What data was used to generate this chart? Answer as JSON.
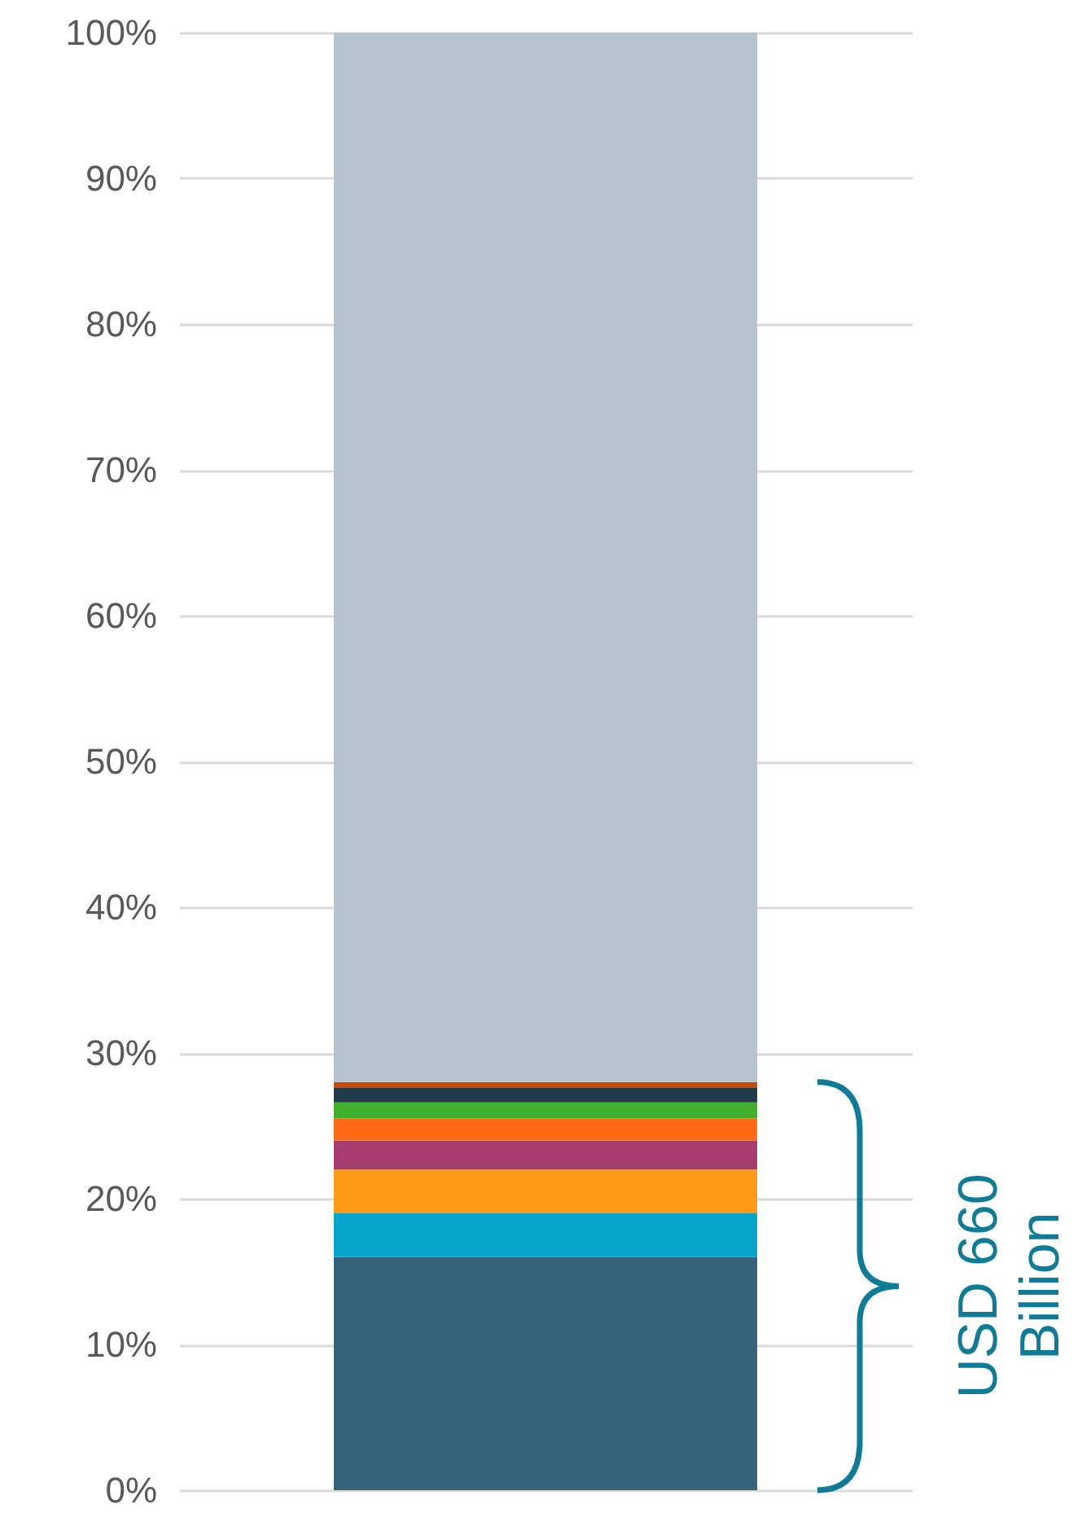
{
  "chart_data": {
    "type": "bar",
    "stacked": true,
    "categories": [
      null
    ],
    "series": [
      {
        "color": "#35637a",
        "values": [
          16
        ]
      },
      {
        "color": "#05a5cc",
        "values": [
          3
        ]
      },
      {
        "color": "#fd9a16",
        "values": [
          3
        ]
      },
      {
        "color": "#a63d6e",
        "values": [
          2
        ]
      },
      {
        "color": "#ff6914",
        "values": [
          1.5
        ]
      },
      {
        "color": "#41ae2c",
        "values": [
          1.1
        ]
      },
      {
        "color": "#223a4a",
        "values": [
          1
        ]
      },
      {
        "color": "#c84b0e",
        "values": [
          0.4
        ]
      },
      {
        "color": "#b4c3ce",
        "values": [
          72
        ]
      }
    ],
    "ylim": [
      0,
      100
    ],
    "yticks": [
      {
        "value": 0,
        "label": "0%"
      },
      {
        "value": 10,
        "label": "10%"
      },
      {
        "value": 20,
        "label": "20%"
      },
      {
        "value": 30,
        "label": "30%"
      },
      {
        "value": 40,
        "label": "40%"
      },
      {
        "value": 50,
        "label": "50%"
      },
      {
        "value": 60,
        "label": "60%"
      },
      {
        "value": 70,
        "label": "70%"
      },
      {
        "value": 80,
        "label": "80%"
      },
      {
        "value": 90,
        "label": "90%"
      },
      {
        "value": 100,
        "label": "100%"
      }
    ],
    "grid": "y",
    "legend": false,
    "annotations": [
      "USD 660 Billion"
    ]
  }
}
